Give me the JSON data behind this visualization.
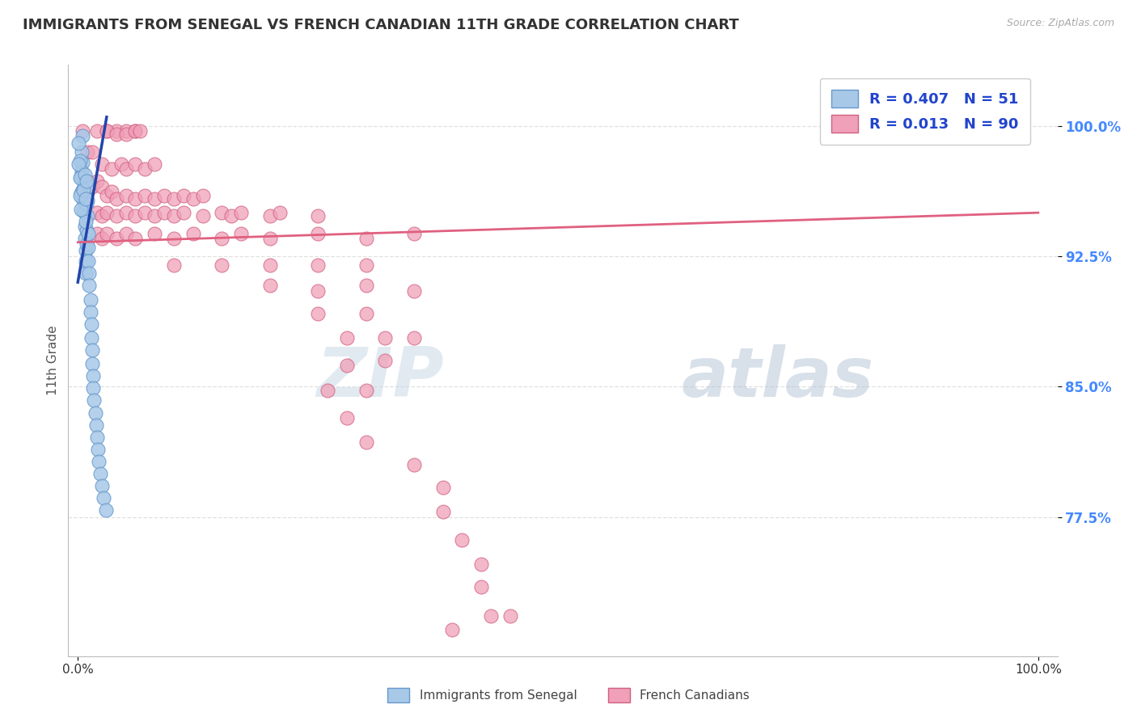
{
  "title": "IMMIGRANTS FROM SENEGAL VS FRENCH CANADIAN 11TH GRADE CORRELATION CHART",
  "source": "Source: ZipAtlas.com",
  "ylabel": "11th Grade",
  "ytick_labels": [
    "77.5%",
    "85.0%",
    "92.5%",
    "100.0%"
  ],
  "ytick_values": [
    0.775,
    0.85,
    0.925,
    1.0
  ],
  "xtick_labels": [
    "0.0%",
    "100.0%"
  ],
  "xtick_values": [
    0.0,
    1.0
  ],
  "xlim": [
    -0.01,
    1.02
  ],
  "ylim": [
    0.695,
    1.035
  ],
  "legend_label1": "Immigrants from Senegal",
  "legend_label2": "French Canadians",
  "watermark_zip": "ZIP",
  "watermark_atlas": "atlas",
  "blue_color": "#a8c8e8",
  "blue_edge": "#6699cc",
  "pink_color": "#f0a0b8",
  "pink_edge": "#d06080",
  "blue_line_color": "#2244aa",
  "pink_line_color": "#e06080",
  "title_color": "#333333",
  "source_color": "#aaaaaa",
  "grid_color": "#e0e0e0",
  "ytick_color": "#4488ff",
  "legend_text_color": "#2244cc",
  "blue_scatter": [
    [
      0.005,
      0.994
    ],
    [
      0.005,
      0.979
    ],
    [
      0.006,
      0.968
    ],
    [
      0.006,
      0.957
    ],
    [
      0.007,
      0.95
    ],
    [
      0.007,
      0.942
    ],
    [
      0.007,
      0.935
    ],
    [
      0.008,
      0.928
    ],
    [
      0.008,
      0.922
    ],
    [
      0.008,
      0.915
    ],
    [
      0.009,
      0.94
    ],
    [
      0.009,
      0.932
    ],
    [
      0.01,
      0.957
    ],
    [
      0.01,
      0.948
    ],
    [
      0.011,
      0.938
    ],
    [
      0.011,
      0.93
    ],
    [
      0.011,
      0.922
    ],
    [
      0.012,
      0.915
    ],
    [
      0.012,
      0.908
    ],
    [
      0.013,
      0.9
    ],
    [
      0.013,
      0.893
    ],
    [
      0.014,
      0.886
    ],
    [
      0.014,
      0.878
    ],
    [
      0.015,
      0.871
    ],
    [
      0.015,
      0.863
    ],
    [
      0.016,
      0.856
    ],
    [
      0.016,
      0.849
    ],
    [
      0.017,
      0.842
    ],
    [
      0.018,
      0.835
    ],
    [
      0.019,
      0.828
    ],
    [
      0.02,
      0.821
    ],
    [
      0.021,
      0.814
    ],
    [
      0.022,
      0.807
    ],
    [
      0.023,
      0.8
    ],
    [
      0.025,
      0.793
    ],
    [
      0.027,
      0.786
    ],
    [
      0.029,
      0.779
    ],
    [
      0.004,
      0.985
    ],
    [
      0.004,
      0.974
    ],
    [
      0.005,
      0.963
    ],
    [
      0.006,
      0.951
    ],
    [
      0.007,
      0.96
    ],
    [
      0.008,
      0.945
    ],
    [
      0.009,
      0.955
    ],
    [
      0.01,
      0.965
    ],
    [
      0.003,
      0.971
    ],
    [
      0.003,
      0.961
    ],
    [
      0.003,
      0.952
    ],
    [
      0.002,
      0.98
    ],
    [
      0.002,
      0.97
    ],
    [
      0.002,
      0.96
    ],
    [
      0.001,
      0.99
    ],
    [
      0.001,
      0.978
    ],
    [
      0.006,
      0.963
    ],
    [
      0.007,
      0.972
    ],
    [
      0.008,
      0.958
    ],
    [
      0.009,
      0.968
    ]
  ],
  "pink_scatter": [
    [
      0.005,
      0.997
    ],
    [
      0.02,
      0.997
    ],
    [
      0.03,
      0.997
    ],
    [
      0.04,
      0.997
    ],
    [
      0.05,
      0.997
    ],
    [
      0.06,
      0.997
    ],
    [
      0.03,
      0.997
    ],
    [
      0.04,
      0.995
    ],
    [
      0.05,
      0.995
    ],
    [
      0.06,
      0.997
    ],
    [
      0.065,
      0.997
    ],
    [
      0.01,
      0.985
    ],
    [
      0.015,
      0.985
    ],
    [
      0.025,
      0.978
    ],
    [
      0.035,
      0.975
    ],
    [
      0.045,
      0.978
    ],
    [
      0.05,
      0.975
    ],
    [
      0.06,
      0.978
    ],
    [
      0.07,
      0.975
    ],
    [
      0.08,
      0.978
    ],
    [
      0.01,
      0.968
    ],
    [
      0.015,
      0.965
    ],
    [
      0.02,
      0.968
    ],
    [
      0.025,
      0.965
    ],
    [
      0.03,
      0.96
    ],
    [
      0.035,
      0.962
    ],
    [
      0.04,
      0.958
    ],
    [
      0.05,
      0.96
    ],
    [
      0.06,
      0.958
    ],
    [
      0.07,
      0.96
    ],
    [
      0.08,
      0.958
    ],
    [
      0.09,
      0.96
    ],
    [
      0.1,
      0.958
    ],
    [
      0.11,
      0.96
    ],
    [
      0.12,
      0.958
    ],
    [
      0.13,
      0.96
    ],
    [
      0.02,
      0.95
    ],
    [
      0.025,
      0.948
    ],
    [
      0.03,
      0.95
    ],
    [
      0.04,
      0.948
    ],
    [
      0.05,
      0.95
    ],
    [
      0.06,
      0.948
    ],
    [
      0.07,
      0.95
    ],
    [
      0.08,
      0.948
    ],
    [
      0.09,
      0.95
    ],
    [
      0.1,
      0.948
    ],
    [
      0.11,
      0.95
    ],
    [
      0.13,
      0.948
    ],
    [
      0.15,
      0.95
    ],
    [
      0.16,
      0.948
    ],
    [
      0.17,
      0.95
    ],
    [
      0.2,
      0.948
    ],
    [
      0.21,
      0.95
    ],
    [
      0.25,
      0.948
    ],
    [
      0.02,
      0.938
    ],
    [
      0.025,
      0.935
    ],
    [
      0.03,
      0.938
    ],
    [
      0.04,
      0.935
    ],
    [
      0.05,
      0.938
    ],
    [
      0.06,
      0.935
    ],
    [
      0.08,
      0.938
    ],
    [
      0.1,
      0.935
    ],
    [
      0.12,
      0.938
    ],
    [
      0.15,
      0.935
    ],
    [
      0.17,
      0.938
    ],
    [
      0.2,
      0.935
    ],
    [
      0.25,
      0.938
    ],
    [
      0.3,
      0.935
    ],
    [
      0.35,
      0.938
    ],
    [
      0.1,
      0.92
    ],
    [
      0.15,
      0.92
    ],
    [
      0.2,
      0.92
    ],
    [
      0.25,
      0.92
    ],
    [
      0.3,
      0.92
    ],
    [
      0.2,
      0.908
    ],
    [
      0.25,
      0.905
    ],
    [
      0.3,
      0.908
    ],
    [
      0.35,
      0.905
    ],
    [
      0.25,
      0.892
    ],
    [
      0.3,
      0.892
    ],
    [
      0.28,
      0.878
    ],
    [
      0.32,
      0.878
    ],
    [
      0.35,
      0.878
    ],
    [
      0.28,
      0.862
    ],
    [
      0.32,
      0.865
    ],
    [
      0.26,
      0.848
    ],
    [
      0.3,
      0.848
    ],
    [
      0.28,
      0.832
    ],
    [
      0.3,
      0.818
    ],
    [
      0.35,
      0.805
    ],
    [
      0.38,
      0.792
    ],
    [
      0.38,
      0.778
    ],
    [
      0.4,
      0.762
    ],
    [
      0.42,
      0.748
    ],
    [
      0.42,
      0.735
    ],
    [
      0.43,
      0.718
    ],
    [
      0.45,
      0.718
    ],
    [
      0.39,
      0.71
    ]
  ],
  "blue_line": {
    "x0": 0.0,
    "y0": 0.91,
    "x1": 0.03,
    "y1": 1.005
  },
  "pink_line": {
    "x0": 0.0,
    "y0": 0.933,
    "x1": 1.0,
    "y1": 0.95
  }
}
